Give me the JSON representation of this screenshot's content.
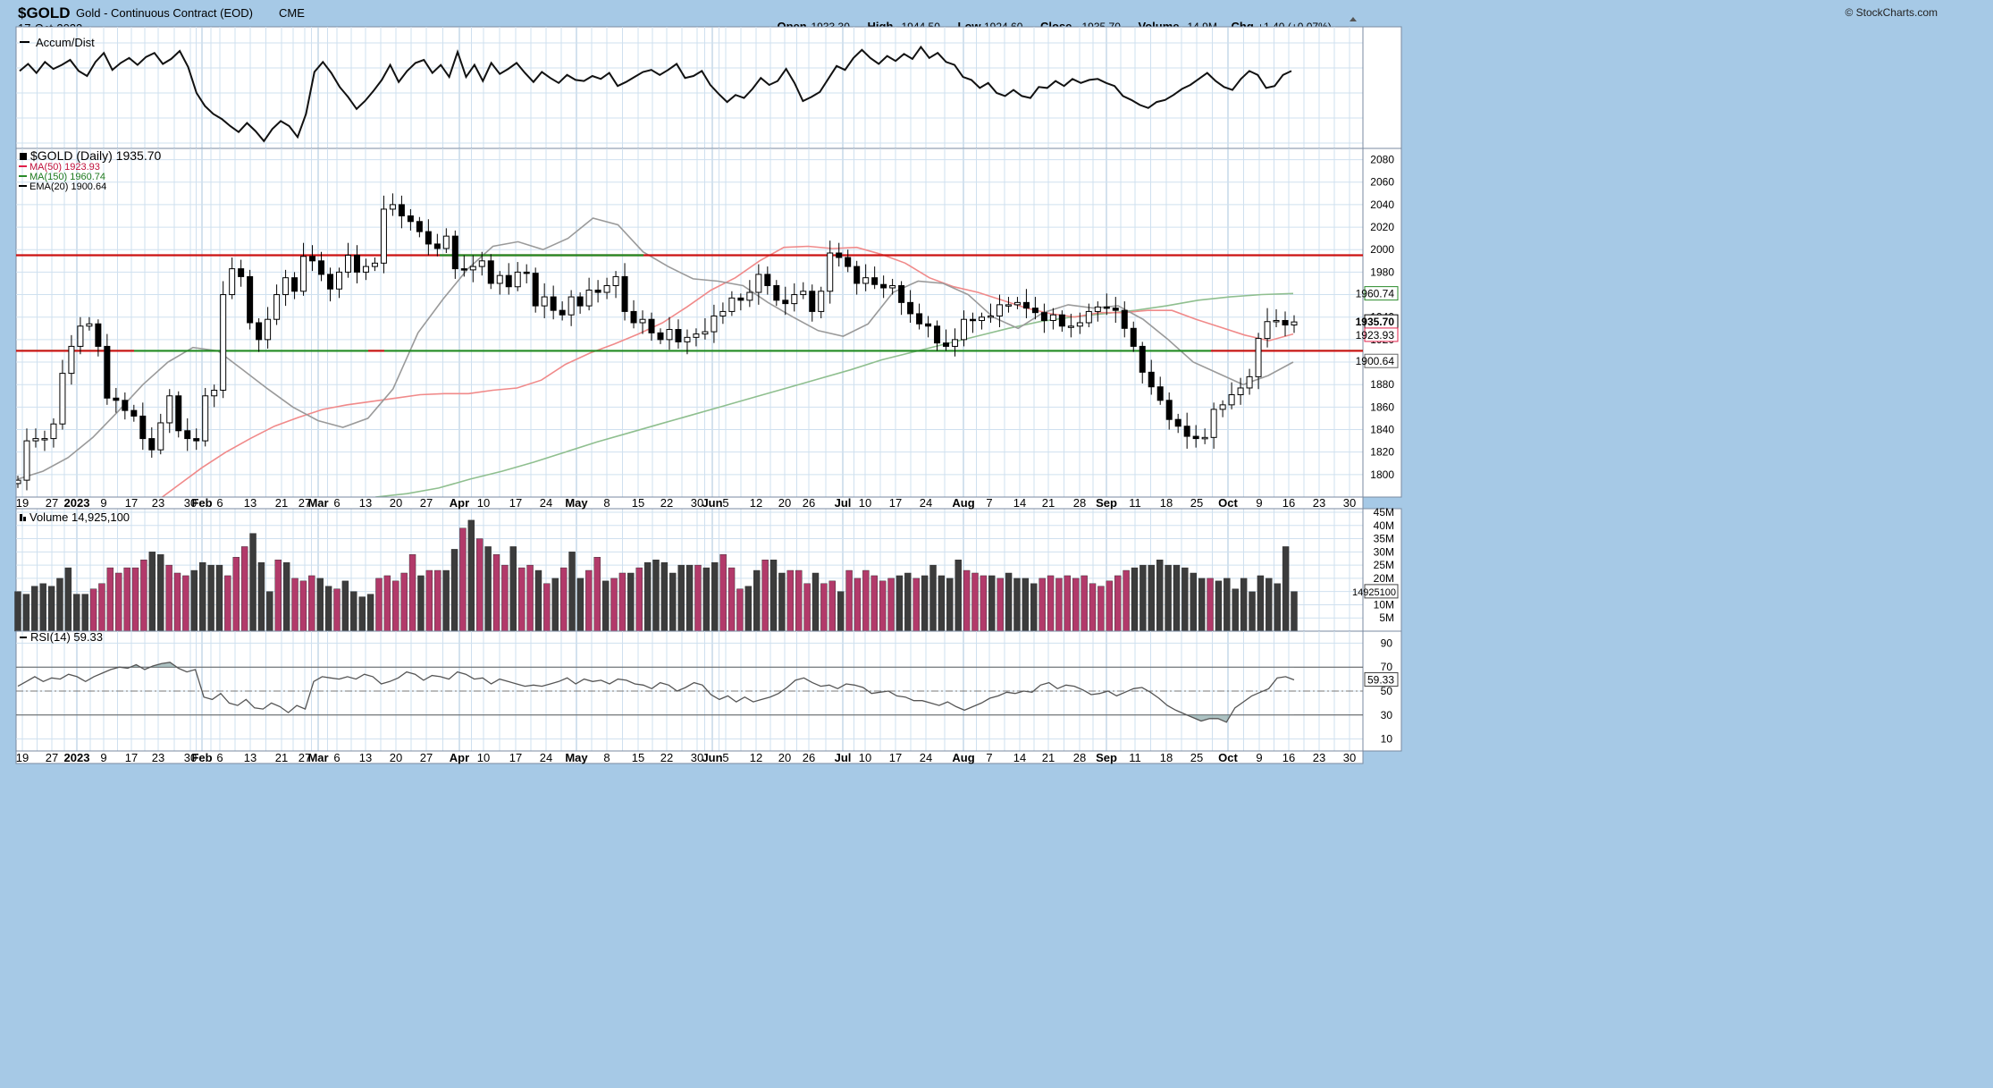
{
  "header": {
    "symbol": "$GOLD",
    "description": "Gold - Continuous Contract (EOD)",
    "exchange": "CME",
    "date": "17-Oct-2023",
    "watermark": "© StockCharts.com",
    "quote": [
      {
        "label": "Open",
        "value": "1933.30"
      },
      {
        "label": "High",
        "value": "1944.50"
      },
      {
        "label": "Low",
        "value": "1924.60"
      },
      {
        "label": "Close",
        "value": "1935.70"
      },
      {
        "label": "Volume",
        "value": "14.9M"
      },
      {
        "label": "Chg",
        "value": "+1.40 (+0.07%)"
      }
    ]
  },
  "panels": {
    "accum": {
      "legend": "Accum/Dist"
    },
    "price": {
      "legend": [
        {
          "text": "$GOLD (Daily) 1935.70",
          "color": "#000000"
        },
        {
          "text": "MA(50) 1923.93",
          "color": "#e0204a"
        },
        {
          "text": "MA(150) 1960.74",
          "color": "#2a8a2a"
        },
        {
          "text": "EMA(20) 1900.64",
          "color": "#000000"
        }
      ]
    },
    "volume": {
      "legend": "Volume 14,925,100"
    },
    "rsi": {
      "legend": "RSI(14) 59.33"
    }
  },
  "chart_data": {
    "type": "candlestick",
    "x_axis": {
      "labels": [
        {
          "text": "19",
          "bold": false
        },
        {
          "text": "27",
          "bold": false
        },
        {
          "text": "2023",
          "bold": true
        },
        {
          "text": "9",
          "bold": false
        },
        {
          "text": "17",
          "bold": false
        },
        {
          "text": "23",
          "bold": false
        },
        {
          "text": "30",
          "bold": false
        },
        {
          "text": "Feb",
          "bold": true
        },
        {
          "text": "6",
          "bold": false
        },
        {
          "text": "13",
          "bold": false
        },
        {
          "text": "21",
          "bold": false
        },
        {
          "text": "27",
          "bold": false
        },
        {
          "text": "Mar",
          "bold": true
        },
        {
          "text": "6",
          "bold": false
        },
        {
          "text": "13",
          "bold": false
        },
        {
          "text": "20",
          "bold": false
        },
        {
          "text": "27",
          "bold": false
        },
        {
          "text": "Apr",
          "bold": true
        },
        {
          "text": "10",
          "bold": false
        },
        {
          "text": "17",
          "bold": false
        },
        {
          "text": "24",
          "bold": false
        },
        {
          "text": "May",
          "bold": true
        },
        {
          "text": "8",
          "bold": false
        },
        {
          "text": "15",
          "bold": false
        },
        {
          "text": "22",
          "bold": false
        },
        {
          "text": "30",
          "bold": false
        },
        {
          "text": "Jun",
          "bold": true
        },
        {
          "text": "5",
          "bold": false
        },
        {
          "text": "12",
          "bold": false
        },
        {
          "text": "20",
          "bold": false
        },
        {
          "text": "26",
          "bold": false
        },
        {
          "text": "Jul",
          "bold": true
        },
        {
          "text": "10",
          "bold": false
        },
        {
          "text": "17",
          "bold": false
        },
        {
          "text": "24",
          "bold": false
        },
        {
          "text": "Aug",
          "bold": true
        },
        {
          "text": "7",
          "bold": false
        },
        {
          "text": "14",
          "bold": false
        },
        {
          "text": "21",
          "bold": false
        },
        {
          "text": "28",
          "bold": false
        },
        {
          "text": "Sep",
          "bold": true
        },
        {
          "text": "11",
          "bold": false
        },
        {
          "text": "18",
          "bold": false
        },
        {
          "text": "25",
          "bold": false
        },
        {
          "text": "Oct",
          "bold": true
        },
        {
          "text": "9",
          "bold": false
        },
        {
          "text": "16",
          "bold": false
        },
        {
          "text": "23",
          "bold": false
        },
        {
          "text": "30",
          "bold": false
        }
      ]
    },
    "price": {
      "ylim": [
        1780,
        2090
      ],
      "ticks": [
        1800,
        1820,
        1840,
        1860,
        1880,
        1900,
        1920,
        1940,
        1960,
        1980,
        2000,
        2020,
        2040,
        2060,
        2080
      ],
      "resistance_line": {
        "value": 1995,
        "color": "#cc1111"
      },
      "support_line": {
        "value": 1910,
        "color": "#228b22"
      },
      "highlight_resistance": [
        1995
      ],
      "pivot_points": [
        1795,
        1830,
        1832,
        1832,
        1845,
        1890,
        1914,
        1932,
        1934,
        1914,
        1868,
        1866,
        1857,
        1852,
        1832,
        1822,
        1846,
        1870,
        1839,
        1832,
        1830,
        1870,
        1875,
        1960,
        1983,
        1976,
        1935,
        1920,
        1938,
        1960,
        1975,
        1963,
        1994,
        1990,
        1978,
        1965,
        1980,
        1995,
        1980,
        1985,
        1988,
        2036,
        2040,
        2030,
        2025,
        2016,
        2005,
        2001,
        2012,
        1983,
        1982,
        1985,
        1990,
        1970,
        1977,
        1967,
        1980,
        1979,
        1950,
        1958,
        1946,
        1942,
        1958,
        1950,
        1964,
        1962,
        1968,
        1976,
        1945,
        1935,
        1938,
        1926,
        1920,
        1929,
        1918,
        1922,
        1925,
        1927,
        1941,
        1945,
        1957,
        1955,
        1962,
        1978,
        1968,
        1955,
        1952,
        1960,
        1963,
        1945,
        1963,
        1997,
        1993,
        1985,
        1970,
        1975,
        1969,
        1966,
        1968,
        1953,
        1943,
        1934,
        1932,
        1917,
        1914,
        1920,
        1938,
        1937,
        1940,
        1941,
        1951,
        1951,
        1953,
        1948,
        1944,
        1937,
        1942,
        1932,
        1932,
        1935,
        1945,
        1949,
        1948,
        1946,
        1930,
        1914,
        1891,
        1878,
        1866,
        1849,
        1843,
        1834,
        1832,
        1833,
        1858,
        1862,
        1871,
        1877,
        1887,
        1921,
        1936,
        1937,
        1933,
        1935.7
      ],
      "ma50": {
        "name": "MA(50)",
        "value": 1923.93,
        "values": [
          1740,
          1748,
          1760,
          1774,
          1790,
          1806,
          1820,
          1832,
          1843,
          1851,
          1858,
          1862,
          1865,
          1868,
          1871,
          1872,
          1872,
          1875,
          1877,
          1884,
          1898,
          1908,
          1916,
          1925,
          1935,
          1949,
          1964,
          1975,
          1990,
          2002,
          2003,
          2001,
          2002,
          1996,
          1988,
          1975,
          1967,
          1962,
          1955,
          1948,
          1943,
          1940,
          1944,
          1944,
          1946,
          1946,
          1938,
          1931,
          1924,
          1919,
          1925
        ]
      },
      "ma150": {
        "name": "MA(150)",
        "value": 1960.74,
        "values": [
          1780,
          1783,
          1788,
          1796,
          1803,
          1811,
          1820,
          1829,
          1837,
          1845,
          1853,
          1861,
          1869,
          1877,
          1885,
          1893,
          1902,
          1909,
          1916,
          1923,
          1930,
          1936,
          1940,
          1943,
          1946,
          1950,
          1955,
          1958,
          1960,
          1961
        ]
      },
      "ema20": {
        "name": "EMA(20)",
        "value": 1900.64,
        "values": [
          1796,
          1803,
          1815,
          1833,
          1856,
          1880,
          1900,
          1913,
          1910,
          1893,
          1876,
          1860,
          1848,
          1842,
          1850,
          1876,
          1926,
          1956,
          1983,
          2003,
          2007,
          2000,
          2010,
          2028,
          2022,
          1998,
          1985,
          1974,
          1972,
          1968,
          1953,
          1940,
          1928,
          1923,
          1934,
          1962,
          1972,
          1970,
          1960,
          1940,
          1930,
          1944,
          1951,
          1948,
          1950,
          1938,
          1920,
          1900,
          1890,
          1880,
          1888,
          1900
        ]
      }
    },
    "accum_dist": {
      "values": [
        72,
        79,
        70,
        81,
        74,
        78,
        83,
        72,
        67,
        81,
        90,
        73,
        80,
        85,
        78,
        86,
        90,
        79,
        84,
        92,
        76,
        50,
        37,
        29,
        24,
        17,
        11,
        20,
        12,
        2,
        14,
        22,
        17,
        6,
        29,
        71,
        81,
        70,
        56,
        46,
        34,
        42,
        52,
        63,
        78,
        61,
        72,
        80,
        83,
        70,
        78,
        66,
        91,
        66,
        78,
        62,
        80,
        69,
        74,
        80,
        70,
        61,
        71,
        65,
        60,
        68,
        63,
        62,
        67,
        64,
        70,
        57,
        61,
        66,
        71,
        73,
        68,
        73,
        79,
        65,
        67,
        72,
        58,
        49,
        41,
        48,
        45,
        54,
        65,
        58,
        62,
        74,
        60,
        42,
        46,
        51,
        64,
        77,
        73,
        85,
        93,
        85,
        79,
        87,
        82,
        89,
        84,
        96,
        85,
        90,
        81,
        78,
        66,
        63,
        55,
        60,
        50,
        47,
        53,
        47,
        45,
        56,
        55,
        62,
        57,
        64,
        60,
        63,
        64,
        60,
        57,
        47,
        43,
        38,
        35,
        41,
        43,
        48,
        54,
        58,
        64,
        70,
        62,
        56,
        53,
        64,
        72,
        68,
        55,
        57,
        68,
        72
      ]
    },
    "volume": {
      "ylim": [
        0,
        45
      ],
      "ticks": [
        5,
        10,
        15,
        20,
        25,
        30,
        35,
        40,
        45
      ],
      "tick_labels": [
        "5M",
        "10M",
        "15M",
        "20M",
        "25M",
        "30M",
        "35M",
        "40M",
        "45M"
      ],
      "last_label": "14925100",
      "values": [
        15,
        14,
        17,
        18,
        17,
        20,
        24,
        14,
        14,
        16,
        18,
        24,
        22,
        24,
        24,
        27,
        30,
        29,
        25,
        22,
        21,
        23,
        26,
        25,
        25,
        21,
        28,
        32,
        37,
        26,
        15,
        27,
        26,
        20,
        19,
        21,
        20,
        17,
        16,
        19,
        15,
        13,
        14,
        20,
        21,
        19,
        22,
        29,
        21,
        23,
        23,
        23,
        31,
        39,
        42,
        35,
        32,
        29,
        25,
        32,
        24,
        25,
        23,
        18,
        20,
        24,
        30,
        20,
        23,
        28,
        19,
        20,
        22,
        22,
        24,
        26,
        27,
        26,
        22,
        25,
        25,
        25,
        24,
        26,
        29,
        24,
        16,
        17,
        23,
        27,
        27,
        22,
        23,
        23,
        18,
        22,
        18,
        19,
        15,
        23,
        20,
        23,
        21,
        19,
        20,
        21,
        22,
        20,
        21,
        25,
        21,
        20,
        27,
        23,
        22,
        21,
        21,
        20,
        22,
        20,
        20,
        18,
        20,
        21,
        20,
        21,
        20,
        21,
        18,
        17,
        19,
        21,
        23,
        24,
        25,
        25,
        27,
        25,
        25,
        24,
        22,
        20,
        20,
        19,
        20,
        16,
        20,
        14.925,
        21,
        20,
        18,
        32,
        15
      ]
    },
    "rsi": {
      "ylim": [
        0,
        100
      ],
      "ticks": [
        10,
        30,
        50,
        70,
        90
      ],
      "overbought": 70,
      "oversold": 30,
      "mid": 50,
      "value": 59.33,
      "values": [
        54,
        58,
        62,
        58,
        61,
        60,
        64,
        62,
        58,
        62,
        65,
        68,
        70,
        69,
        72,
        68,
        71,
        73,
        74,
        69,
        66,
        68,
        45,
        43,
        48,
        40,
        38,
        43,
        36,
        35,
        40,
        37,
        32,
        38,
        35,
        58,
        62,
        61,
        60,
        62,
        60,
        64,
        62,
        56,
        58,
        61,
        66,
        64,
        59,
        63,
        62,
        60,
        66,
        64,
        60,
        61,
        56,
        60,
        58,
        56,
        54,
        55,
        54,
        56,
        58,
        61,
        56,
        60,
        58,
        59,
        56,
        60,
        59,
        56,
        55,
        52,
        57,
        55,
        50,
        53,
        57,
        55,
        47,
        43,
        46,
        41,
        45,
        41,
        43,
        45,
        48,
        53,
        59,
        61,
        57,
        54,
        55,
        52,
        56,
        55,
        53,
        48,
        49,
        50,
        46,
        45,
        42,
        42,
        40,
        38,
        41,
        37,
        34,
        37,
        40,
        44,
        46,
        49,
        48,
        50,
        49,
        55,
        57,
        52,
        55,
        54,
        51,
        47,
        48,
        50,
        46,
        49,
        52,
        53,
        49,
        44,
        38,
        34,
        31,
        28,
        25,
        27,
        27,
        24,
        36,
        41,
        46,
        49,
        52,
        61,
        62,
        59.33
      ]
    }
  }
}
